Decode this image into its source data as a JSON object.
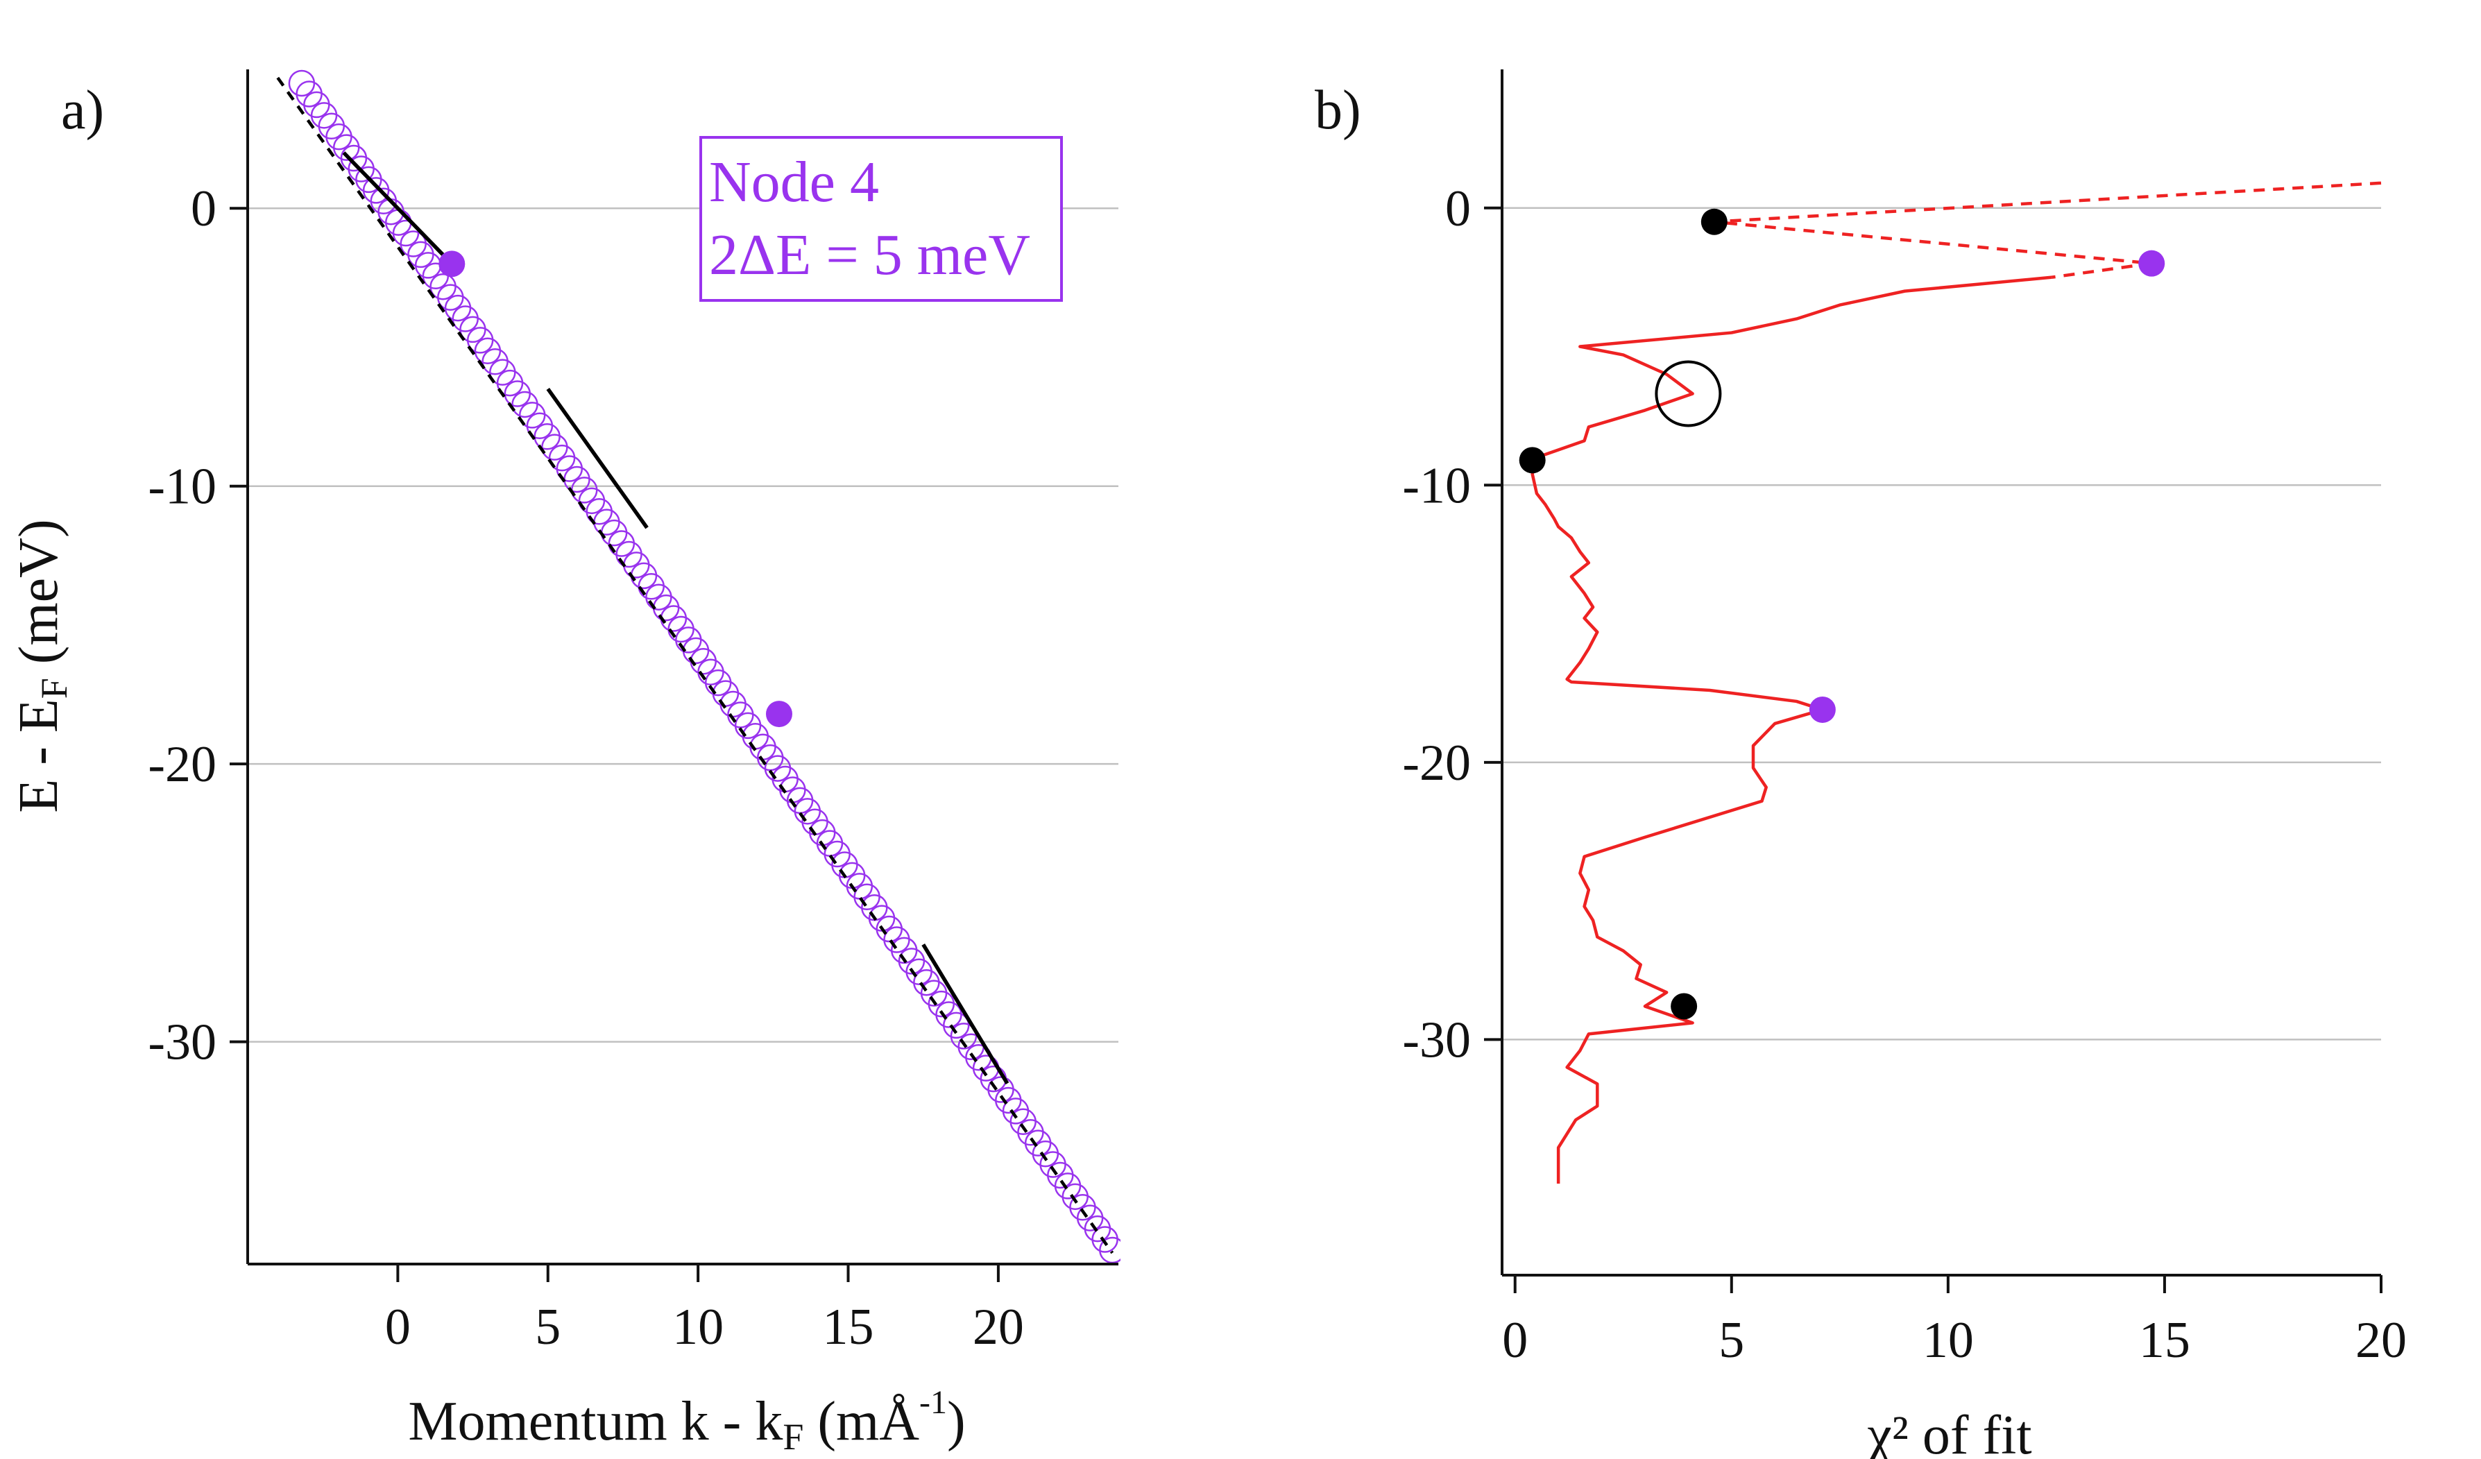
{
  "chart_data": [
    {
      "type": "scatter",
      "panel_label": "a)",
      "xlabel": "Momentum k - k",
      "xlabel_sub": "F",
      "xlabel_unit_pre": " (mÅ",
      "xlabel_unit_sup": "-1",
      "xlabel_unit_post": ")",
      "ylabel": "E - E",
      "ylabel_sub": "F",
      "ylabel_unit": " (meV)",
      "xlim": [
        -5,
        24
      ],
      "ylim": [
        -38,
        5
      ],
      "xticks": [
        0,
        5,
        10,
        15,
        20
      ],
      "yticks": [
        0,
        -10,
        -20,
        -30
      ],
      "grid": "horizontal",
      "legend": {
        "line1": "Node 4",
        "line2": "2ΔE = 5 meV",
        "placement": "top-right"
      },
      "colors": {
        "markers": "#9933ee",
        "fit": "#000000"
      },
      "open_markers": {
        "k_start": -3.2,
        "k_end": 23.8,
        "e_start": 4.5,
        "e_end": -37.5,
        "count": 110
      },
      "dashed_fit_line": {
        "x": [
          -4.0,
          23.8
        ],
        "y": [
          4.7,
          -37.6
        ]
      },
      "segment_fits": [
        {
          "x": [
            -1.8,
            1.8
          ],
          "y": [
            2.0,
            -2.0
          ]
        },
        {
          "x": [
            5.0,
            8.3
          ],
          "y": [
            -6.5,
            -11.5
          ]
        },
        {
          "x": [
            17.5,
            20.3
          ],
          "y": [
            -26.5,
            -31.5
          ]
        }
      ],
      "highlighted_points": [
        {
          "k": 1.8,
          "e": -2.0
        },
        {
          "k": 12.7,
          "e": -18.2
        }
      ]
    },
    {
      "type": "line",
      "panel_label": "b)",
      "xlabel": "χ² of  fit",
      "xlim": [
        -0.3,
        20
      ],
      "ylim": [
        -38.5,
        5
      ],
      "xticks": [
        0,
        5,
        10,
        15,
        20
      ],
      "yticks": [
        0,
        -10,
        -20,
        -30
      ],
      "grid": "horizontal",
      "colors": {
        "line": "#ee2222",
        "black_points": "#000000",
        "purple_points": "#9933ee"
      },
      "solid_series": {
        "x": [
          12.4,
          9.0,
          7.5,
          6.5,
          5.0,
          3.6,
          2.2,
          1.5,
          2.5,
          3.5,
          4.1,
          3.0,
          1.7,
          1.6,
          0.5,
          0.4,
          0.5,
          0.7,
          0.9,
          1.0,
          1.3,
          1.5,
          1.7,
          1.3,
          1.6,
          1.8,
          1.6,
          1.9,
          1.7,
          1.5,
          1.2,
          1.3,
          4.5,
          6.5,
          7.1,
          6.0,
          5.5,
          5.5,
          5.8,
          5.7,
          3.0,
          1.6,
          1.5,
          1.7,
          1.6,
          1.8,
          1.9,
          2.5,
          2.9,
          2.8,
          3.5,
          3.0,
          4.1,
          1.7,
          1.5,
          1.2,
          1.9,
          1.9,
          1.4,
          1.0,
          1.0
        ],
        "y": [
          -2.5,
          -3.0,
          -3.5,
          -4.0,
          -4.5,
          -4.7,
          -4.9,
          -5.0,
          -5.3,
          -6.0,
          -6.7,
          -7.3,
          -7.9,
          -8.4,
          -9.0,
          -9.6,
          -10.3,
          -10.7,
          -11.2,
          -11.5,
          -11.9,
          -12.4,
          -12.8,
          -13.3,
          -13.9,
          -14.4,
          -14.8,
          -15.3,
          -15.9,
          -16.4,
          -17.0,
          -17.1,
          -17.4,
          -17.8,
          -18.1,
          -18.6,
          -19.4,
          -20.2,
          -20.9,
          -21.4,
          -22.7,
          -23.4,
          -24.0,
          -24.6,
          -25.2,
          -25.7,
          -26.3,
          -26.8,
          -27.3,
          -27.8,
          -28.3,
          -28.8,
          -29.4,
          -29.8,
          -30.4,
          -31.0,
          -31.6,
          -32.4,
          -32.9,
          -33.9,
          -35.2
        ]
      },
      "dashed_series": {
        "x": [
          20.0,
          4.6,
          14.7,
          12.4
        ],
        "y": [
          0.9,
          -0.5,
          -2.0,
          -2.5
        ]
      },
      "black_points": [
        {
          "x": 4.6,
          "y": -0.5
        },
        {
          "x": 0.4,
          "y": -9.1
        },
        {
          "x": 3.9,
          "y": -28.8
        }
      ],
      "purple_points": [
        {
          "x": 14.7,
          "y": -2.0
        },
        {
          "x": 7.1,
          "y": -18.1
        }
      ],
      "open_circle": {
        "x": 4.0,
        "y": -6.7
      }
    }
  ]
}
